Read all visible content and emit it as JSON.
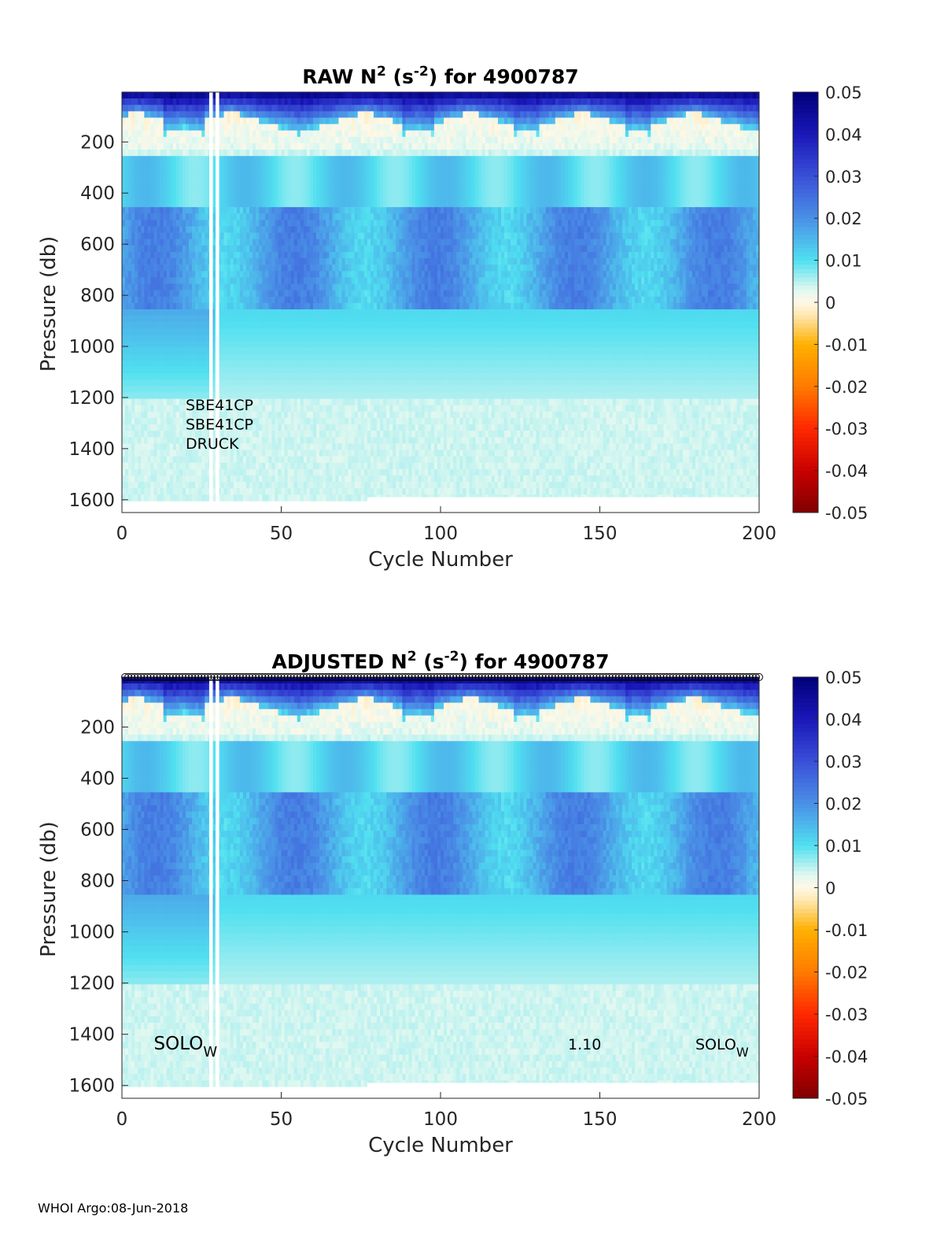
{
  "footer": "WHOI Argo:08-Jun-2018",
  "colors": {
    "colormap_stops": [
      {
        "v": -0.05,
        "c": "#7f0000"
      },
      {
        "v": -0.04,
        "c": "#c80000"
      },
      {
        "v": -0.03,
        "c": "#ff2800"
      },
      {
        "v": -0.02,
        "c": "#ff7a00"
      },
      {
        "v": -0.01,
        "c": "#ffb000"
      },
      {
        "v": -0.003,
        "c": "#ffe7b0"
      },
      {
        "v": 0,
        "c": "#fff8e6"
      },
      {
        "v": 0.003,
        "c": "#e2f8f0"
      },
      {
        "v": 0.01,
        "c": "#50e0f0"
      },
      {
        "v": 0.02,
        "c": "#4a90e6"
      },
      {
        "v": 0.03,
        "c": "#3a50d8"
      },
      {
        "v": 0.04,
        "c": "#1a18b8"
      },
      {
        "v": 0.05,
        "c": "#00007a"
      }
    ]
  },
  "chart_data": [
    {
      "type": "heatmap",
      "title": "RAW N² (s⁻²) for 4900787",
      "title_parts": {
        "pre": "RAW N",
        "sup1": "2",
        "mid": " (s",
        "sup2": "-2",
        "post": ") for 4900787"
      },
      "xlabel": "Cycle Number",
      "ylabel": "Pressure (db)",
      "xlim": [
        0,
        200
      ],
      "ylim": [
        1650,
        5
      ],
      "xticks": [
        "0",
        "50",
        "100",
        "150",
        "200"
      ],
      "yticks": [
        "200",
        "400",
        "600",
        "800",
        "1000",
        "1200",
        "1400",
        "1600"
      ],
      "clim": [
        -0.05,
        0.05
      ],
      "colorbar_ticks": [
        "0.05",
        "0.04",
        "0.03",
        "0.02",
        "0.01",
        "0",
        "-0.01",
        "-0.02",
        "-0.03",
        "-0.04",
        "-0.05"
      ],
      "annotations": [
        {
          "text": "SBE41CP",
          "cycle": 20,
          "pressure": 1250
        },
        {
          "text": "SBE41CP",
          "cycle": 20,
          "pressure": 1325
        },
        {
          "text": "DRUCK",
          "cycle": 20,
          "pressure": 1400
        }
      ],
      "gap_cycles": [
        28,
        30
      ],
      "n2_features": {
        "surface_maxima_cycles": [
          5,
          35,
          77,
          110,
          145,
          180
        ],
        "subsurface_band_pressure": [
          450,
          850
        ],
        "background_value": 0.004
      }
    },
    {
      "type": "heatmap",
      "title": "ADJUSTED N² (s⁻²) for 4900787",
      "title_parts": {
        "pre": "ADJUSTED N",
        "sup1": "2",
        "mid": " (s",
        "sup2": "-2",
        "post": ") for 4900787"
      },
      "xlabel": "Cycle Number",
      "ylabel": "Pressure (db)",
      "xlim": [
        0,
        200
      ],
      "ylim": [
        1650,
        5
      ],
      "xticks": [
        "0",
        "50",
        "100",
        "150",
        "200"
      ],
      "yticks": [
        "200",
        "400",
        "600",
        "800",
        "1000",
        "1200",
        "1400",
        "1600"
      ],
      "clim": [
        -0.05,
        0.05
      ],
      "colorbar_ticks": [
        "0.05",
        "0.04",
        "0.03",
        "0.02",
        "0.01",
        "0",
        "-0.01",
        "-0.02",
        "-0.03",
        "-0.04",
        "-0.05"
      ],
      "annotations": [
        {
          "text": "SOLO",
          "sub": "W",
          "cycle": 10,
          "pressure": 1460
        },
        {
          "text": "1.10",
          "cycle": 140,
          "pressure": 1460
        },
        {
          "text": "SOLO",
          "sub": "W",
          "cycle": 180,
          "pressure": 1460
        }
      ],
      "top_markers": "open circles at every cycle 1–200",
      "gap_cycles": [
        28,
        30
      ],
      "n2_features": {
        "surface_maxima_cycles": [
          5,
          35,
          77,
          110,
          145,
          180
        ],
        "subsurface_band_pressure": [
          450,
          850
        ],
        "background_value": 0.004
      }
    }
  ]
}
